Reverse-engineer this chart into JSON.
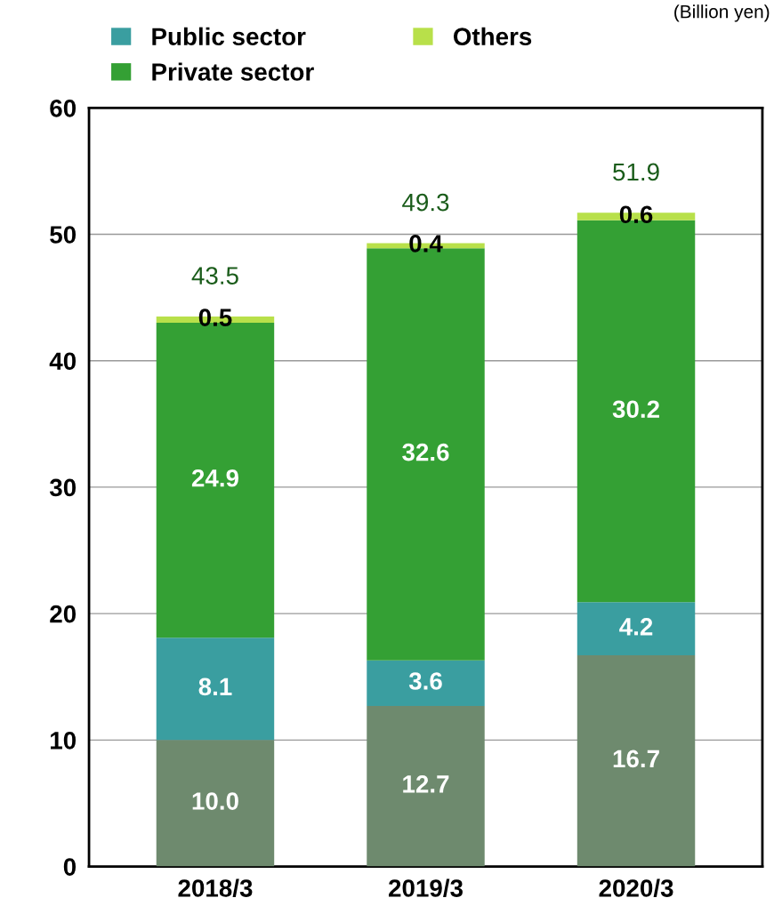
{
  "chart_data": {
    "type": "bar",
    "stacked": true,
    "categories": [
      "2018/3",
      "2019/3",
      "2020/3"
    ],
    "series": [
      {
        "color": "#6e8a6e",
        "values": [
          10.0,
          12.7,
          16.7
        ],
        "value_labels": [
          "10.0",
          "12.7",
          "16.7"
        ]
      },
      {
        "name": "Public sector",
        "color": "#3a9ea0",
        "values": [
          8.1,
          3.6,
          4.2
        ],
        "value_labels": [
          "8.1",
          "3.6",
          "4.2"
        ]
      },
      {
        "name": "Private sector",
        "color": "#34a034",
        "values": [
          24.9,
          32.6,
          30.2
        ],
        "value_labels": [
          "24.9",
          "32.6",
          "30.2"
        ]
      },
      {
        "name": "Others",
        "color": "#b8e04a",
        "values": [
          0.5,
          0.4,
          0.6
        ],
        "value_labels": [
          "0.5",
          "0.4",
          "0.6"
        ]
      }
    ],
    "totals": [
      "43.5",
      "49.3",
      "51.9"
    ],
    "ylim": [
      0,
      60
    ],
    "yticks": [
      0,
      10,
      20,
      30,
      40,
      50,
      60
    ],
    "grid": "y",
    "legend": "top",
    "annotations": [
      "(Billion yen)"
    ]
  }
}
